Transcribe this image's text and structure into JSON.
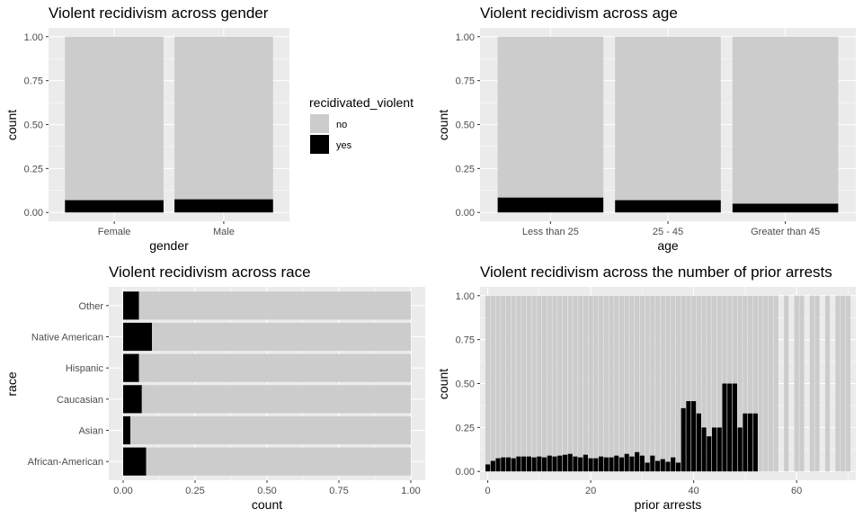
{
  "colors": {
    "panel_bg": "#ebebeb",
    "grid": "#ffffff",
    "no": "#cccccc",
    "yes": "#000000",
    "tick_text": "#4d4d4d"
  },
  "legend": {
    "title": "recidivated_violent",
    "items": [
      {
        "label": "no",
        "color": "#cccccc"
      },
      {
        "label": "yes",
        "color": "#000000"
      }
    ]
  },
  "chart_data": [
    {
      "type": "bar",
      "orientation": "vertical",
      "stacked": "fill",
      "title": "Violent recidivism across gender",
      "xlabel": "gender",
      "ylabel": "count",
      "categories": [
        "Female",
        "Male"
      ],
      "series": [
        {
          "name": "no",
          "values": [
            0.93,
            0.925
          ]
        },
        {
          "name": "yes",
          "values": [
            0.07,
            0.075
          ]
        }
      ],
      "ylim": [
        0,
        1
      ],
      "yticks": [
        "0.00",
        "0.25",
        "0.50",
        "0.75",
        "1.00"
      ],
      "ytick_values": [
        0,
        0.25,
        0.5,
        0.75,
        1
      ]
    },
    {
      "type": "bar",
      "orientation": "vertical",
      "stacked": "fill",
      "title": "Violent recidivism across age",
      "xlabel": "age",
      "ylabel": "count",
      "categories": [
        "Less than 25",
        "25 - 45",
        "Greater than 45"
      ],
      "series": [
        {
          "name": "no",
          "values": [
            0.915,
            0.93,
            0.95
          ]
        },
        {
          "name": "yes",
          "values": [
            0.085,
            0.07,
            0.05
          ]
        }
      ],
      "ylim": [
        0,
        1
      ],
      "yticks": [
        "0.00",
        "0.25",
        "0.50",
        "0.75",
        "1.00"
      ],
      "ytick_values": [
        0,
        0.25,
        0.5,
        0.75,
        1
      ]
    },
    {
      "type": "bar",
      "orientation": "horizontal",
      "stacked": "fill",
      "title": "Violent recidivism across race",
      "xlabel": "count",
      "ylabel": "race",
      "categories": [
        "African-American",
        "Asian",
        "Caucasian",
        "Hispanic",
        "Native American",
        "Other"
      ],
      "series": [
        {
          "name": "no",
          "values": [
            0.92,
            0.975,
            0.935,
            0.945,
            0.9,
            0.945
          ]
        },
        {
          "name": "yes",
          "values": [
            0.08,
            0.025,
            0.065,
            0.055,
            0.1,
            0.055
          ]
        }
      ],
      "xlim": [
        0,
        1
      ],
      "xticks": [
        "0.00",
        "0.25",
        "0.50",
        "0.75",
        "1.00"
      ],
      "xtick_values": [
        0,
        0.25,
        0.5,
        0.75,
        1
      ]
    },
    {
      "type": "bar",
      "orientation": "vertical",
      "stacked": "fill",
      "title": "Violent recidivism across the number of prior arrests",
      "xlabel": "prior arrests",
      "ylabel": "count",
      "x": [
        0,
        1,
        2,
        3,
        4,
        5,
        6,
        7,
        8,
        9,
        10,
        11,
        12,
        13,
        14,
        15,
        16,
        17,
        18,
        19,
        20,
        21,
        22,
        23,
        24,
        25,
        26,
        27,
        28,
        29,
        30,
        31,
        32,
        33,
        34,
        35,
        36,
        37,
        38,
        39,
        40,
        41,
        42,
        43,
        44,
        45,
        46,
        47,
        48,
        49,
        50,
        51,
        52,
        53,
        54,
        55,
        56,
        57,
        58,
        59,
        60,
        61,
        62,
        63,
        64,
        65,
        66,
        67,
        68,
        69,
        70
      ],
      "series": [
        {
          "name": "yes",
          "values": [
            0.04,
            0.06,
            0.075,
            0.08,
            0.08,
            0.075,
            0.085,
            0.085,
            0.085,
            0.08,
            0.085,
            0.08,
            0.09,
            0.085,
            0.09,
            0.095,
            0.1,
            0.085,
            0.08,
            0.095,
            0.075,
            0.075,
            0.085,
            0.08,
            0.08,
            0.09,
            0.08,
            0.1,
            0.085,
            0.11,
            0.09,
            0.05,
            0.09,
            0.06,
            0.07,
            0.055,
            0.08,
            0.05,
            0.36,
            0.4,
            0.4,
            0.33,
            0.25,
            0.2,
            0.25,
            0.25,
            0.5,
            0.5,
            0.5,
            0.25,
            0.33,
            0.33,
            0.33,
            0,
            0,
            0,
            0,
            0,
            0,
            0,
            0,
            0,
            0,
            0,
            0,
            0,
            0,
            0,
            0,
            0,
            0
          ]
        }
      ],
      "present": [
        1,
        1,
        1,
        1,
        1,
        1,
        1,
        1,
        1,
        1,
        1,
        1,
        1,
        1,
        1,
        1,
        1,
        1,
        1,
        1,
        1,
        1,
        1,
        1,
        1,
        1,
        1,
        1,
        1,
        1,
        1,
        1,
        1,
        1,
        1,
        1,
        1,
        1,
        1,
        1,
        1,
        1,
        1,
        1,
        1,
        1,
        1,
        1,
        1,
        1,
        1,
        1,
        1,
        1,
        1,
        1,
        1,
        0,
        1,
        0,
        1,
        1,
        0,
        1,
        1,
        0,
        1,
        0,
        1,
        1,
        1
      ],
      "ylim": [
        0,
        1
      ],
      "yticks": [
        "0.00",
        "0.25",
        "0.50",
        "0.75",
        "1.00"
      ],
      "ytick_values": [
        0,
        0.25,
        0.5,
        0.75,
        1
      ],
      "xticks": [
        "0",
        "20",
        "40",
        "60"
      ],
      "xtick_values": [
        0,
        20,
        40,
        60
      ],
      "xlim": [
        -1.5,
        71.5
      ]
    }
  ]
}
